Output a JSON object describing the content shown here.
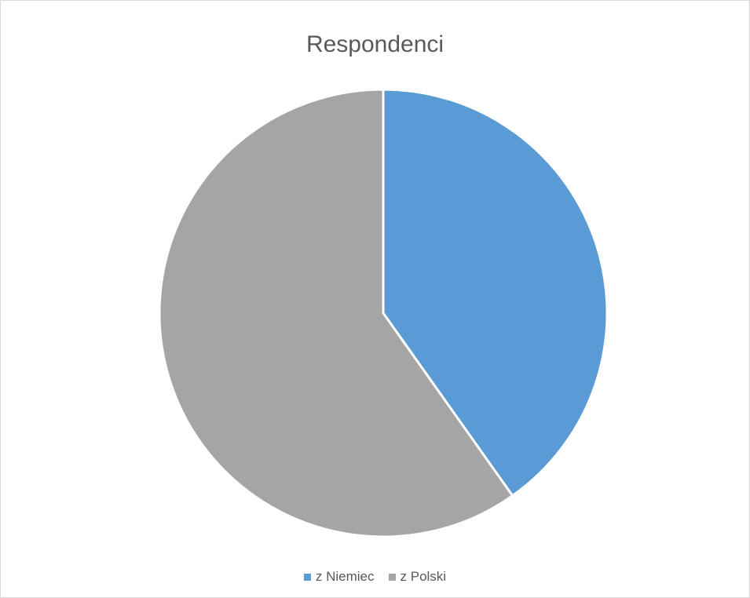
{
  "chart_data": {
    "type": "pie",
    "title": "Respondenci",
    "slices": [
      {
        "label": "z Niemiec",
        "value": 40.2,
        "color": "#5b9bd5"
      },
      {
        "label": "z Polski",
        "value": 59.8,
        "color": "#a5a5a5"
      }
    ],
    "start_angle_deg": 0,
    "direction": "clockwise",
    "legend_position": "bottom",
    "data_labels_shown": false
  }
}
